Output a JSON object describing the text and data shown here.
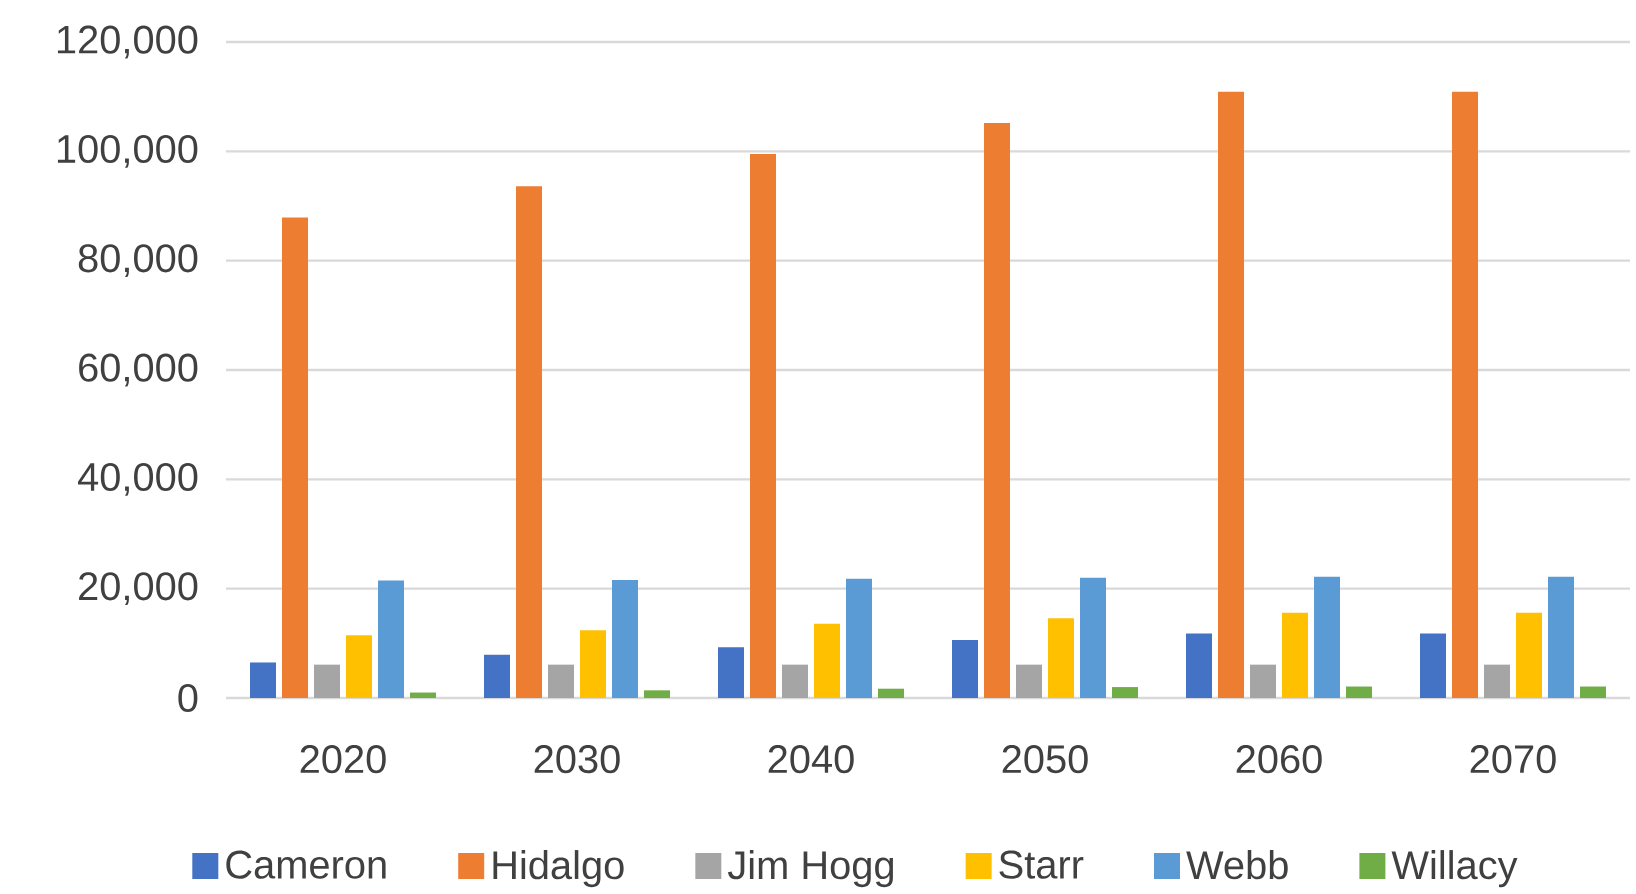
{
  "chart_data": {
    "type": "bar",
    "categories": [
      "2020",
      "2030",
      "2040",
      "2050",
      "2060",
      "2070"
    ],
    "series": [
      {
        "name": "Cameron",
        "color": "#4472c4",
        "values": [
          6500,
          7900,
          9300,
          10600,
          11800,
          11800
        ]
      },
      {
        "name": "Hidalgo",
        "color": "#ed7d31",
        "values": [
          87900,
          93600,
          99500,
          105200,
          110900,
          110900
        ]
      },
      {
        "name": "Jim Hogg",
        "color": "#a5a5a5",
        "values": [
          6100,
          6100,
          6100,
          6100,
          6100,
          6100
        ]
      },
      {
        "name": "Starr",
        "color": "#ffc000",
        "values": [
          11500,
          12400,
          13600,
          14600,
          15600,
          15600
        ]
      },
      {
        "name": "Webb",
        "color": "#5b9bd5",
        "values": [
          21500,
          21600,
          21800,
          22000,
          22200,
          22200
        ]
      },
      {
        "name": "Willacy",
        "color": "#70ad47",
        "values": [
          1000,
          1400,
          1700,
          2000,
          2100,
          2100
        ]
      }
    ],
    "ylim": [
      0,
      120000
    ],
    "yticks": [
      0,
      {
        "value": 20000,
        "label": "20,000"
      },
      {
        "value": 40000,
        "label": "40,000"
      },
      {
        "value": 60000,
        "label": "60,000"
      },
      {
        "value": 80000,
        "label": "80,000"
      },
      {
        "value": 100000,
        "label": "100,000"
      },
      {
        "value": 120000,
        "label": "120,000"
      }
    ],
    "grid": "y",
    "legend": "bottom"
  }
}
